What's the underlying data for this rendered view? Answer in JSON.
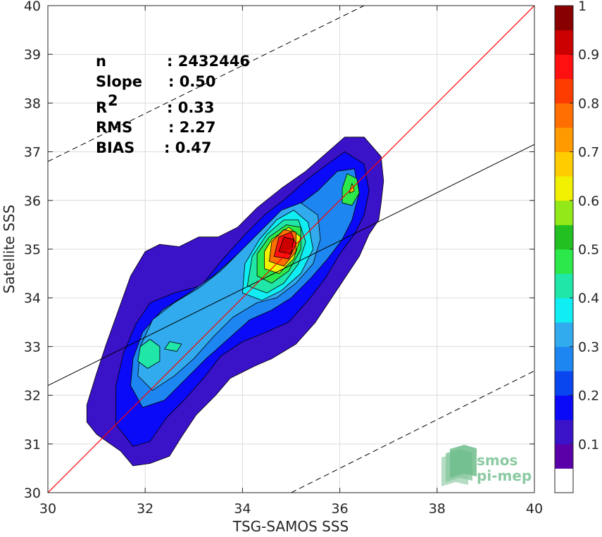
{
  "chart_data": {
    "type": "heatmap",
    "xlabel": "TSG-SAMOS SSS",
    "ylabel": "Satellite SSS",
    "xlim": [
      30,
      40
    ],
    "ylim": [
      30,
      40
    ],
    "x_ticks": [
      30,
      32,
      34,
      36,
      38,
      40
    ],
    "y_ticks": [
      30,
      31,
      32,
      33,
      34,
      35,
      36,
      37,
      38,
      39,
      40
    ],
    "grid": true,
    "stats": [
      {
        "label": "n",
        "value": ": 2432446"
      },
      {
        "label": "Slope",
        "value": ": 0.50"
      },
      {
        "label": "R",
        "sup": "2",
        "value": ": 0.33"
      },
      {
        "label": "RMS",
        "value": ": 2.27"
      },
      {
        "label": "BIAS",
        "value": ": 0.47"
      }
    ],
    "lines": {
      "one_to_one": {
        "color": "#ff0000",
        "x": [
          30,
          40
        ],
        "y": [
          30,
          40
        ]
      },
      "regression": {
        "color": "#000000",
        "x": [
          30,
          40
        ],
        "y": [
          32.2,
          37.15
        ]
      },
      "upper_bound_dashed": {
        "x": [
          30,
          36.5
        ],
        "y": [
          36.8,
          40
        ]
      },
      "lower_bound_dashed": {
        "x": [
          35,
          40
        ],
        "y": [
          30,
          32.5
        ]
      }
    },
    "colorbar": {
      "levels": [
        0,
        0.05,
        0.1,
        0.15,
        0.2,
        0.25,
        0.3,
        0.35,
        0.4,
        0.45,
        0.5,
        0.55,
        0.6,
        0.65,
        0.7,
        0.75,
        0.8,
        0.85,
        0.9,
        0.95,
        1
      ],
      "colors": [
        "#ffffff",
        "#5a00a8",
        "#3a12c8",
        "#0a0af8",
        "#0a46f0",
        "#1e86f0",
        "#32aaee",
        "#10eef4",
        "#20e6a8",
        "#2ce84a",
        "#22c020",
        "#92e818",
        "#f0f000",
        "#ffcc00",
        "#ff9a00",
        "#ff6e00",
        "#ff3c00",
        "#ff1010",
        "#cc0000",
        "#880000"
      ],
      "ticks": [
        0.1,
        0.2,
        0.3,
        0.4,
        0.5,
        0.6,
        0.7,
        0.8,
        0.9,
        1
      ],
      "tick_labels": [
        "0.1",
        "0.2",
        "0.3",
        "0.4",
        "0.5",
        "0.6",
        "0.7",
        "0.8",
        "0.9",
        "1"
      ]
    },
    "density_contours": [
      {
        "level": 0.1,
        "color": "#3a12c8",
        "points": [
          [
            30.8,
            31.45
          ],
          [
            31.0,
            31.2
          ],
          [
            31.5,
            30.85
          ],
          [
            31.75,
            30.55
          ],
          [
            32.1,
            30.6
          ],
          [
            32.5,
            30.75
          ],
          [
            32.75,
            31.15
          ],
          [
            33.05,
            31.6
          ],
          [
            33.45,
            32.0
          ],
          [
            33.75,
            32.35
          ],
          [
            34.25,
            32.6
          ],
          [
            34.6,
            32.75
          ],
          [
            35.1,
            33.05
          ],
          [
            35.5,
            33.5
          ],
          [
            35.8,
            33.95
          ],
          [
            36.1,
            34.4
          ],
          [
            36.4,
            34.85
          ],
          [
            36.6,
            35.3
          ],
          [
            36.8,
            35.6
          ],
          [
            36.85,
            35.95
          ],
          [
            36.9,
            36.4
          ],
          [
            36.85,
            36.9
          ],
          [
            36.5,
            37.3
          ],
          [
            36.1,
            37.3
          ],
          [
            35.7,
            36.95
          ],
          [
            35.3,
            36.6
          ],
          [
            34.8,
            36.25
          ],
          [
            34.3,
            35.85
          ],
          [
            33.9,
            35.45
          ],
          [
            33.5,
            35.25
          ],
          [
            33.1,
            35.25
          ],
          [
            32.7,
            35.05
          ],
          [
            32.3,
            35.1
          ],
          [
            32.0,
            34.95
          ],
          [
            31.7,
            34.45
          ],
          [
            31.45,
            33.75
          ],
          [
            31.2,
            33.05
          ],
          [
            31.0,
            32.45
          ],
          [
            30.8,
            31.8
          ]
        ]
      },
      {
        "level": 0.15,
        "color": "#0a0af8",
        "points": [
          [
            31.4,
            31.4
          ],
          [
            31.75,
            30.95
          ],
          [
            32.1,
            31.05
          ],
          [
            32.45,
            31.55
          ],
          [
            32.8,
            31.9
          ],
          [
            33.2,
            32.35
          ],
          [
            33.55,
            32.8
          ],
          [
            34.0,
            33.1
          ],
          [
            34.5,
            33.3
          ],
          [
            34.95,
            33.5
          ],
          [
            35.35,
            33.95
          ],
          [
            35.7,
            34.4
          ],
          [
            36.0,
            34.9
          ],
          [
            36.3,
            35.3
          ],
          [
            36.5,
            35.7
          ],
          [
            36.6,
            36.2
          ],
          [
            36.5,
            36.75
          ],
          [
            36.1,
            37.0
          ],
          [
            35.75,
            36.75
          ],
          [
            35.35,
            36.45
          ],
          [
            34.9,
            36.05
          ],
          [
            34.45,
            35.7
          ],
          [
            34.05,
            35.3
          ],
          [
            33.6,
            34.8
          ],
          [
            33.15,
            34.25
          ],
          [
            32.6,
            34.1
          ],
          [
            32.1,
            33.9
          ],
          [
            31.8,
            33.45
          ],
          [
            31.55,
            32.85
          ],
          [
            31.4,
            32.2
          ]
        ]
      },
      {
        "level": 0.25,
        "color": "#1e86f0",
        "points": [
          [
            31.7,
            32.2
          ],
          [
            31.95,
            31.75
          ],
          [
            32.4,
            31.9
          ],
          [
            32.85,
            32.35
          ],
          [
            33.25,
            32.75
          ],
          [
            33.7,
            33.15
          ],
          [
            34.15,
            33.55
          ],
          [
            34.6,
            33.75
          ],
          [
            35.0,
            34.0
          ],
          [
            35.4,
            34.4
          ],
          [
            35.75,
            34.8
          ],
          [
            36.05,
            35.2
          ],
          [
            36.25,
            35.6
          ],
          [
            36.4,
            36.15
          ],
          [
            36.3,
            36.65
          ],
          [
            35.95,
            36.6
          ],
          [
            35.55,
            36.2
          ],
          [
            35.15,
            35.9
          ],
          [
            34.75,
            35.6
          ],
          [
            34.35,
            35.3
          ],
          [
            33.9,
            34.9
          ],
          [
            33.4,
            34.45
          ],
          [
            32.9,
            34.1
          ],
          [
            32.35,
            33.75
          ],
          [
            31.95,
            33.3
          ],
          [
            31.75,
            32.75
          ]
        ]
      },
      {
        "level": 0.3,
        "color": "#32aaee",
        "points": [
          [
            31.85,
            32.4
          ],
          [
            32.15,
            32.1
          ],
          [
            32.6,
            32.4
          ],
          [
            33.0,
            32.75
          ],
          [
            33.4,
            33.2
          ],
          [
            33.8,
            33.6
          ],
          [
            34.3,
            33.9
          ],
          [
            34.7,
            34.0
          ],
          [
            35.1,
            34.3
          ],
          [
            35.45,
            34.7
          ],
          [
            35.6,
            35.2
          ],
          [
            35.55,
            35.7
          ],
          [
            35.2,
            35.95
          ],
          [
            34.8,
            35.8
          ],
          [
            34.4,
            35.4
          ],
          [
            34.0,
            35.0
          ],
          [
            33.55,
            34.55
          ],
          [
            33.1,
            34.2
          ],
          [
            32.6,
            33.9
          ],
          [
            32.15,
            33.55
          ],
          [
            31.9,
            33.0
          ]
        ]
      },
      {
        "level": 0.4,
        "color": "#10eef4",
        "points": [
          [
            34.0,
            34.1
          ],
          [
            34.4,
            33.95
          ],
          [
            34.8,
            34.15
          ],
          [
            35.2,
            34.5
          ],
          [
            35.45,
            35.0
          ],
          [
            35.35,
            35.55
          ],
          [
            35.05,
            35.8
          ],
          [
            34.7,
            35.6
          ],
          [
            34.35,
            35.2
          ],
          [
            34.05,
            34.7
          ]
        ]
      },
      {
        "level": 0.45,
        "color": "#20e6a8",
        "points": [
          [
            34.1,
            34.25
          ],
          [
            34.5,
            34.1
          ],
          [
            34.85,
            34.3
          ],
          [
            35.15,
            34.7
          ],
          [
            35.3,
            35.15
          ],
          [
            35.15,
            35.6
          ],
          [
            34.85,
            35.6
          ],
          [
            34.5,
            35.3
          ],
          [
            34.2,
            34.85
          ]
        ]
      },
      {
        "level": 0.5,
        "color": "#2ce84a",
        "points": [
          [
            34.3,
            34.45
          ],
          [
            34.6,
            34.3
          ],
          [
            34.95,
            34.55
          ],
          [
            35.2,
            35.0
          ],
          [
            35.2,
            35.45
          ],
          [
            34.9,
            35.5
          ],
          [
            34.55,
            35.25
          ],
          [
            34.3,
            34.9
          ]
        ]
      },
      {
        "level": 0.6,
        "color": "#f0f000",
        "points": [
          [
            34.45,
            34.6
          ],
          [
            34.75,
            34.5
          ],
          [
            35.05,
            34.8
          ],
          [
            35.2,
            35.25
          ],
          [
            34.95,
            35.45
          ],
          [
            34.6,
            35.2
          ],
          [
            34.45,
            34.95
          ]
        ]
      },
      {
        "level": 0.75,
        "color": "#ff6e00",
        "points": [
          [
            34.55,
            34.75
          ],
          [
            34.85,
            34.65
          ],
          [
            35.1,
            34.95
          ],
          [
            35.1,
            35.35
          ],
          [
            34.85,
            35.4
          ],
          [
            34.6,
            35.15
          ]
        ]
      },
      {
        "level": 0.85,
        "color": "#ff1010",
        "points": [
          [
            34.65,
            34.85
          ],
          [
            34.95,
            34.8
          ],
          [
            35.1,
            35.1
          ],
          [
            35.0,
            35.35
          ],
          [
            34.75,
            35.25
          ]
        ]
      },
      {
        "level": 0.9,
        "color": "#cc0000",
        "points": [
          [
            34.75,
            34.95
          ],
          [
            35.0,
            34.9
          ],
          [
            35.05,
            35.2
          ],
          [
            34.85,
            35.25
          ]
        ]
      },
      {
        "level": 0.45,
        "color": "#20e6a8",
        "points": [
          [
            31.85,
            32.7
          ],
          [
            32.05,
            32.55
          ],
          [
            32.3,
            32.7
          ],
          [
            32.3,
            33.0
          ],
          [
            32.1,
            33.15
          ],
          [
            31.9,
            33.0
          ]
        ]
      },
      {
        "level": 0.45,
        "color": "#20e6a8",
        "points": [
          [
            32.4,
            32.95
          ],
          [
            32.65,
            32.9
          ],
          [
            32.75,
            33.05
          ],
          [
            32.5,
            33.1
          ]
        ]
      },
      {
        "level": 0.5,
        "color": "#2ce84a",
        "points": [
          [
            36.05,
            35.95
          ],
          [
            36.25,
            35.9
          ],
          [
            36.4,
            36.15
          ],
          [
            36.35,
            36.45
          ],
          [
            36.15,
            36.55
          ],
          [
            36.05,
            36.25
          ]
        ]
      },
      {
        "level": 0.65,
        "color": "#ffcc00",
        "points": [
          [
            36.2,
            36.15
          ],
          [
            36.3,
            36.2
          ],
          [
            36.25,
            36.35
          ]
        ]
      }
    ],
    "watermark": {
      "line1": "smos",
      "line2": "pi-mep"
    }
  }
}
